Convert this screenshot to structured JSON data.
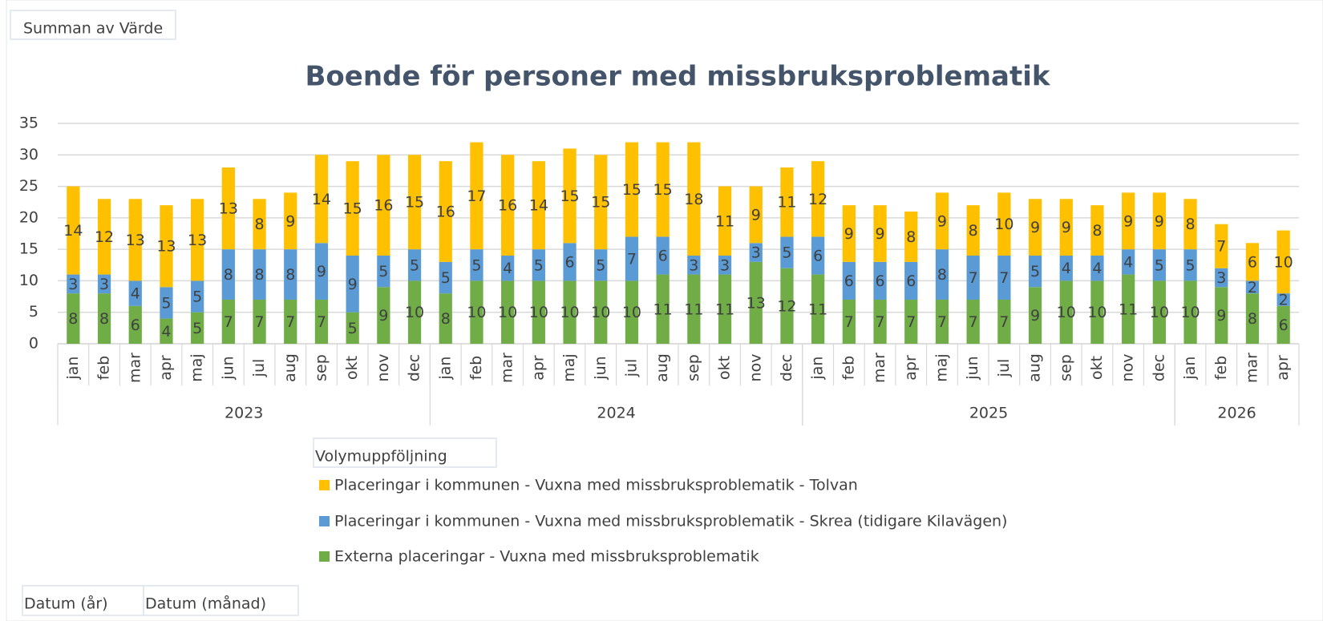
{
  "chart_data": {
    "type": "stacked_bar",
    "title": "Boende för personer med missbruksproblematik",
    "categories": [
      "jan",
      "feb",
      "mar",
      "apr",
      "maj",
      "jun",
      "jul",
      "aug",
      "sep",
      "okt",
      "nov",
      "dec",
      "jan",
      "feb",
      "mar",
      "apr",
      "maj",
      "jun",
      "jul",
      "aug",
      "sep",
      "okt",
      "nov",
      "dec",
      "jan",
      "feb",
      "mar",
      "apr",
      "maj",
      "jun",
      "jul",
      "aug",
      "sep",
      "okt",
      "nov",
      "dec",
      "jan",
      "feb",
      "mar",
      "apr"
    ],
    "category_groups": [
      {
        "label": "2023",
        "size": 12
      },
      {
        "label": "2024",
        "size": 12
      },
      {
        "label": "2025",
        "size": 12
      },
      {
        "label": "2026",
        "size": 4
      }
    ],
    "series": [
      {
        "name": "Externa placeringar - Vuxna med missbruksproblematik",
        "color": "#70ad47",
        "values": [
          8,
          8,
          6,
          4,
          5,
          7,
          7,
          7,
          7,
          5,
          9,
          10,
          8,
          10,
          10,
          10,
          10,
          10,
          10,
          11,
          11,
          11,
          13,
          12,
          11,
          7,
          7,
          7,
          7,
          7,
          7,
          9,
          10,
          10,
          11,
          10,
          10,
          9,
          8,
          6
        ]
      },
      {
        "name": "Placeringar i kommunen - Vuxna med missbruksproblematik - Skrea (tidigare Kilavägen)",
        "color": "#5b9bd5",
        "values": [
          3,
          3,
          4,
          5,
          5,
          8,
          8,
          8,
          9,
          9,
          5,
          5,
          5,
          5,
          4,
          5,
          6,
          5,
          7,
          6,
          3,
          3,
          3,
          5,
          6,
          6,
          6,
          6,
          8,
          7,
          7,
          5,
          4,
          4,
          4,
          5,
          5,
          3,
          2,
          2
        ]
      },
      {
        "name": "Placeringar i kommunen - Vuxna med missbruksproblematik - Tolvan",
        "color": "#ffc000",
        "values": [
          14,
          12,
          13,
          13,
          13,
          13,
          8,
          9,
          14,
          15,
          16,
          15,
          16,
          17,
          16,
          14,
          15,
          15,
          15,
          15,
          18,
          11,
          9,
          11,
          12,
          9,
          9,
          8,
          9,
          8,
          10,
          9,
          9,
          8,
          9,
          9,
          8,
          7,
          6,
          10
        ]
      }
    ],
    "ylim": [
      0,
      35
    ],
    "yticks": [
      0,
      5,
      10,
      15,
      20,
      25,
      30,
      35
    ],
    "grid": true,
    "legend_title": "Volymuppföljning",
    "value_field": "Summan av Värde",
    "axis_fields": [
      "Datum (år)",
      "Datum (månad)"
    ]
  }
}
